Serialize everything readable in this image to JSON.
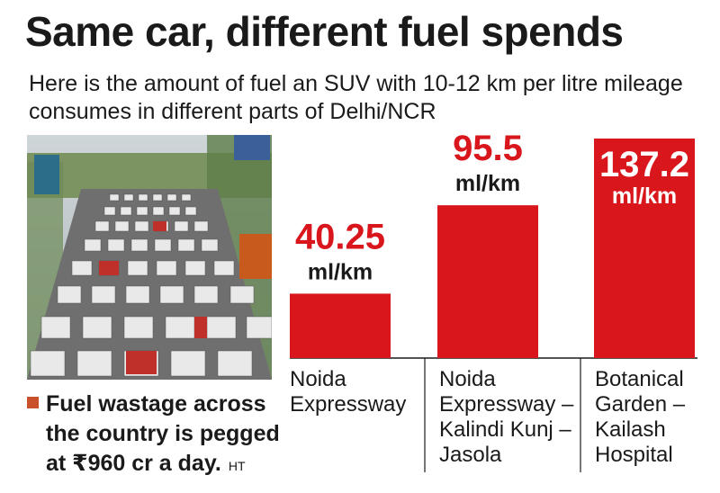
{
  "title": "Same car, different fuel spends",
  "subtitle": "Here is the amount of fuel an SUV with 10-12 km per litre mileage consumes in different parts of Delhi/NCR",
  "caption": {
    "text_line1": "Fuel wastage across",
    "text_line2": "the country is pegged",
    "text_line3": "at ₹960 cr a day.",
    "credit": "HT"
  },
  "colors": {
    "bar": "#d8161c",
    "value_text": "#d8161c",
    "caption_bullet": "#c8502a"
  },
  "chart_data": {
    "type": "bar",
    "title": "",
    "xlabel": "",
    "ylabel": "",
    "unit": "ml/km",
    "categories": [
      [
        "Noida",
        "Expressway"
      ],
      [
        "Noida",
        "Expressway –",
        "Kalindi Kunj –",
        "Jasola"
      ],
      [
        "Botanical",
        "Garden –",
        "Kailash",
        "Hospital"
      ]
    ],
    "value_labels": [
      "40.25",
      "95.5",
      "137.2"
    ],
    "values": [
      40.25,
      95.5,
      137.2
    ],
    "ylim": [
      0,
      137.2
    ],
    "grid": false,
    "legend": "none"
  }
}
